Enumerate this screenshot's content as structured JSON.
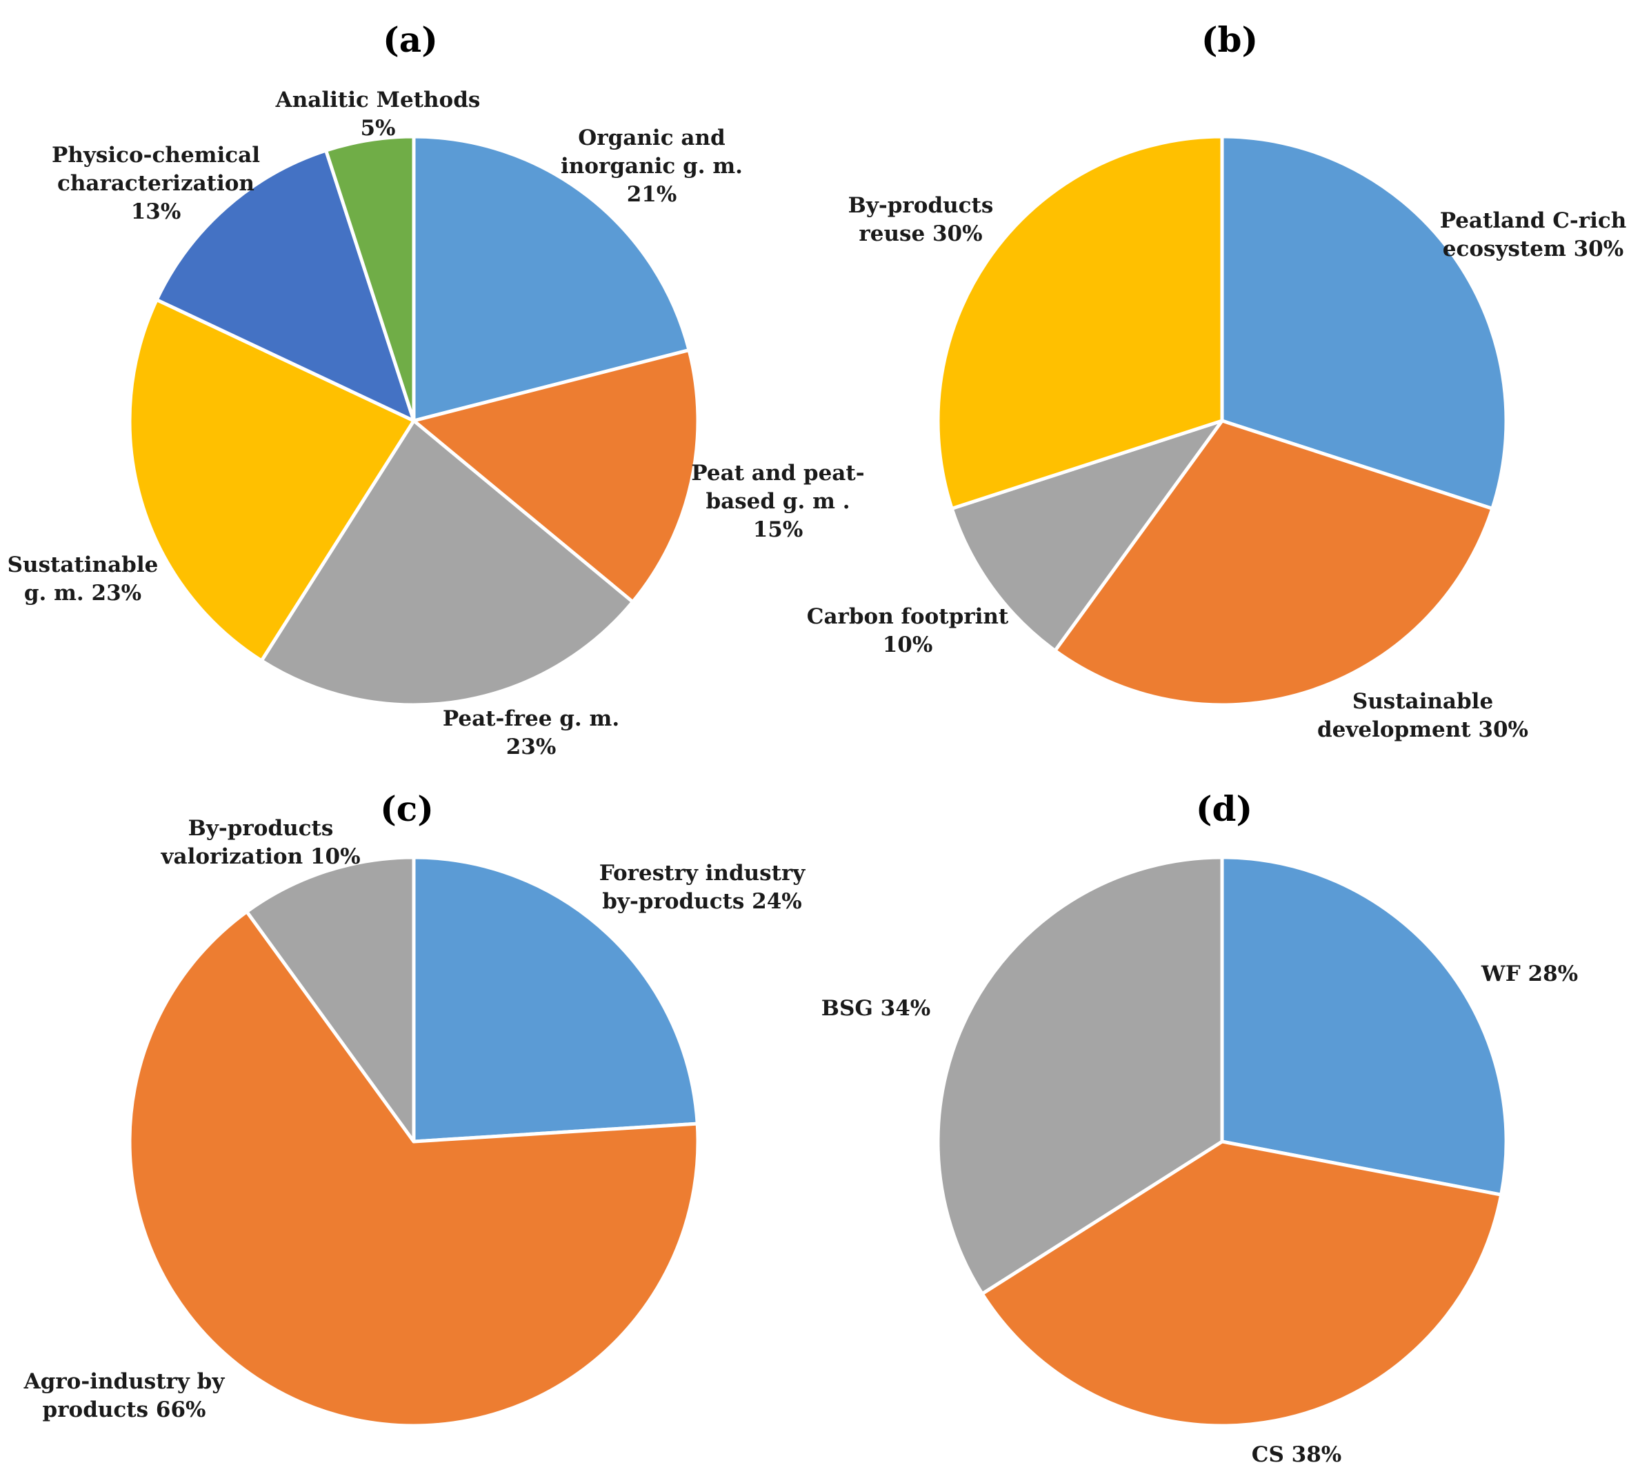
{
  "chart_data": [
    {
      "type": "pie",
      "title": "(a)",
      "slices": [
        {
          "label_lines": [
            "Organic and",
            "inorganic g. m.",
            "21%"
          ],
          "value": 21,
          "color": "#5b9bd5"
        },
        {
          "label_lines": [
            "Peat and peat-",
            "based g. m .",
            "15%"
          ],
          "value": 15,
          "color": "#ed7d31"
        },
        {
          "label_lines": [
            "Peat-free g. m.",
            "23%"
          ],
          "value": 23,
          "color": "#a5a5a5"
        },
        {
          "label_lines": [
            "Sustatinable",
            "g. m. 23%"
          ],
          "value": 23,
          "color": "#ffc000"
        },
        {
          "label_lines": [
            "Physico-chemical",
            "characterization",
            "13%"
          ],
          "value": 13,
          "color": "#4472c4"
        },
        {
          "label_lines": [
            "Analitic Methods",
            "5%"
          ],
          "value": 5,
          "color": "#70ad47"
        }
      ]
    },
    {
      "type": "pie",
      "title": "(b)",
      "slices": [
        {
          "label_lines": [
            "Peatland  C-rich",
            "ecosystem 30%"
          ],
          "value": 30,
          "color": "#5b9bd5"
        },
        {
          "label_lines": [
            "Sustainable",
            "development 30%"
          ],
          "value": 30,
          "color": "#ed7d31"
        },
        {
          "label_lines": [
            "Carbon footprint",
            "10%"
          ],
          "value": 10,
          "color": "#a5a5a5"
        },
        {
          "label_lines": [
            "By-products",
            "reuse 30%"
          ],
          "value": 30,
          "color": "#ffc000"
        }
      ]
    },
    {
      "type": "pie",
      "title": "(c)",
      "slices": [
        {
          "label_lines": [
            "Forestry industry",
            "by-products 24%"
          ],
          "value": 24,
          "color": "#5b9bd5"
        },
        {
          "label_lines": [
            "Agro-industry by",
            "products 66%"
          ],
          "value": 66,
          "color": "#ed7d31"
        },
        {
          "label_lines": [
            "By-products",
            "valorization 10%"
          ],
          "value": 10,
          "color": "#a5a5a5"
        }
      ]
    },
    {
      "type": "pie",
      "title": "(d)",
      "slices": [
        {
          "label_lines": [
            "WF 28%"
          ],
          "value": 28,
          "color": "#5b9bd5"
        },
        {
          "label_lines": [
            "CS 38%"
          ],
          "value": 38,
          "color": "#ed7d31"
        },
        {
          "label_lines": [
            "BSG  34%"
          ],
          "value": 34,
          "color": "#a5a5a5"
        }
      ]
    }
  ]
}
